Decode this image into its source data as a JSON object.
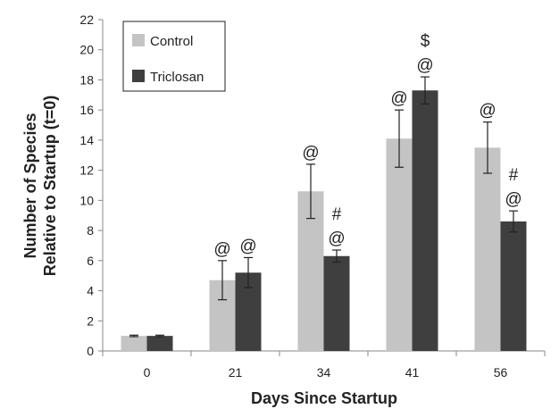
{
  "chart_data": {
    "type": "bar",
    "xlabel": "Days Since Startup",
    "ylabel_lines": [
      "Number of Species",
      "Relative to Startup (t=0)"
    ],
    "categories": [
      "0",
      "21",
      "34",
      "41",
      "56"
    ],
    "ylim": [
      0,
      22
    ],
    "yticks": [
      0,
      2,
      4,
      6,
      8,
      10,
      12,
      14,
      16,
      18,
      20,
      22
    ],
    "grid": false,
    "legend_position": "top-left",
    "series": [
      {
        "name": "Control",
        "color": "#c4c4c4",
        "values": [
          1.0,
          4.7,
          10.6,
          14.1,
          13.5
        ],
        "error": [
          0.05,
          1.3,
          1.8,
          1.9,
          1.7
        ],
        "annotations": [
          [],
          [
            "@"
          ],
          [
            "@"
          ],
          [
            "@"
          ],
          [
            "@"
          ]
        ]
      },
      {
        "name": "Triclosan",
        "color": "#3f3f3f",
        "values": [
          1.0,
          5.2,
          6.3,
          17.3,
          8.6
        ],
        "error": [
          0.05,
          1.0,
          0.4,
          0.9,
          0.7
        ],
        "annotations": [
          [],
          [
            "@"
          ],
          [
            "@",
            "#"
          ],
          [
            "@",
            "$"
          ],
          [
            "@",
            "#"
          ]
        ]
      }
    ]
  }
}
